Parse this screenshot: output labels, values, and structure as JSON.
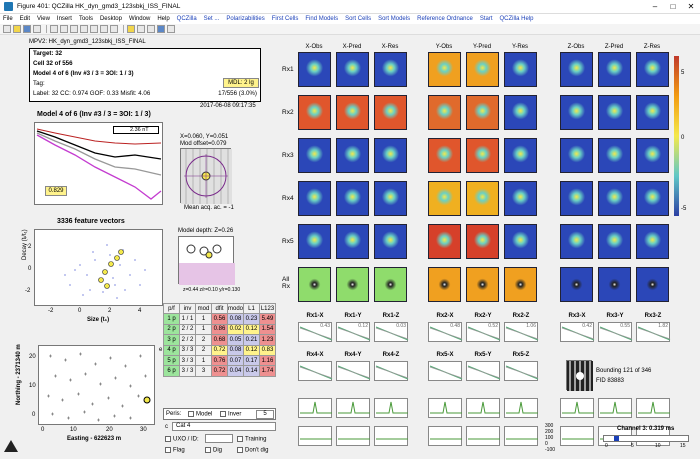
{
  "window": {
    "title": "Figure 401: QCZilla HK_dyn_gmd3_123sbkj_ISS_FINAL"
  },
  "menu": {
    "items": [
      "File",
      "Edit",
      "View",
      "Insert",
      "Tools",
      "Desktop",
      "Window",
      "Help",
      "QCZilla",
      "Set ...",
      "Polarizabilities",
      "First Cells",
      "Find Models",
      "Sort Cells",
      "Sort Models",
      "Reference Ordnance",
      "Start",
      "QCZilla Help"
    ]
  },
  "info": {
    "filename": "MPV2: HK_dyn_gmd3_123sbkj_ISS_FINAL",
    "target": "Target: 32",
    "cell": "Cell 32 of 556",
    "model": "Model 4 of 6 (Inv #3 / 3 = 3OI: 1 / 3)",
    "tag": "Tag:",
    "mdl": "MDL: 2 lg",
    "stats": "Label: 32   CC: 0.974   GOF: 0.33   Misfit: 4.06",
    "progress": "17/556 (3.0%)",
    "date": "2017-06-08 09:17:35"
  },
  "decay": {
    "title": "Model 4 of 6 (Inv #3 / 3 = 3OI: 1 / 3)",
    "legend": "2.36 nT",
    "value": "0.829",
    "mini_header": "X=0.060, Y=0.051",
    "mini_header2": "Mod offset=0.079",
    "mini_footer": "Mean acq. ac. = -1"
  },
  "depth": {
    "title": "Model depth: Z=0.26",
    "footer": "z=0.44   z/r=0.10   y/r=0.130"
  },
  "scatter": {
    "title": "3336 feature vectors",
    "xlabel": "Size (t₁)",
    "ylabel": "Decay (tᵢ/t₁)",
    "xticks": [
      "-2",
      "0",
      "2",
      "4"
    ],
    "yticks": [
      "2",
      "0",
      "-2"
    ]
  },
  "map": {
    "xlabel": "Easting - 622623 m",
    "ylabel": "Northing - 2371340 m",
    "xticks": [
      "0",
      "10",
      "20",
      "30"
    ],
    "yticks": [
      "20",
      "10",
      "0"
    ]
  },
  "table": {
    "headers": [
      "p/f",
      "inv",
      "mod",
      "dfit",
      "modo",
      "L1",
      "L123"
    ],
    "rows": [
      [
        "1 p",
        "1 / 1",
        "1",
        "0.56",
        "0.08",
        "0.23",
        "5.49"
      ],
      [
        "2 p",
        "2 / 2",
        "1",
        "0.86",
        "0.02",
        "0.12",
        "1.54"
      ],
      [
        "3 p",
        "2 / 2",
        "2",
        "0.68",
        "0.05",
        "0.21",
        "1.23"
      ],
      [
        "4 p",
        "3 / 3",
        "2",
        "0.72",
        "0.08",
        "0.12",
        "0.83"
      ],
      [
        "5 p",
        "3 / 3",
        "1",
        "0.76",
        "0.07",
        "0.17",
        "1.16"
      ],
      [
        "6 p",
        "3 / 3",
        "3",
        "0.72",
        "0.04",
        "0.14",
        "1.74"
      ]
    ],
    "side_label": "e"
  },
  "controls": {
    "peris": "Peris:",
    "model": "Model",
    "inver": "Inver",
    "field_value": "5",
    "cat_label": "c",
    "cat_value": "Cat 4",
    "uxo": "UXO / ID:",
    "training": "Training",
    "flag": "Flag",
    "dig": "Dig",
    "dont_dig": "Don't dig"
  },
  "grid": {
    "col_titles": [
      "X-Obs",
      "X-Pred",
      "X-Res",
      "Y-Obs",
      "Y-Pred",
      "Y-Res",
      "Z-Obs",
      "Z-Pred",
      "Z-Res"
    ],
    "row_labels": [
      "Rx1",
      "Rx2",
      "Rx3",
      "Rx4",
      "Rx5",
      "All Rx"
    ],
    "colorbar_ticks": [
      "5",
      "0",
      "-5"
    ]
  },
  "mini": {
    "row1": [
      "Rx1-X",
      "Rx1-Y",
      "Rx1-Z",
      "Rx2-X",
      "Rx2-Y",
      "Rx2-Z",
      "Rx3-X",
      "Rx3-Y",
      "Rx3-Z"
    ],
    "row1_vals": [
      "0.43",
      "0.12",
      "0.03",
      "0.48",
      "0.52",
      "1.06",
      "0.42",
      "0.55",
      "1.82"
    ],
    "row2": [
      "Rx4-X",
      "Rx4-Y",
      "Rx4-Z",
      "Rx5-X",
      "Rx5-Y",
      "Rx5-Z"
    ],
    "yaxis": [
      "300",
      "200",
      "100",
      "0",
      "-100"
    ]
  },
  "bounding": {
    "text1": "Bounding 121 of 346",
    "text2": "FID 83883"
  },
  "channel": {
    "label": "Channel 3:",
    "value": "0.319 ms",
    "ticks": [
      "0",
      "5",
      "10",
      "15"
    ]
  },
  "colors": {
    "accent": "#1a3fb8",
    "highlight_yellow": "#fff38c",
    "highlight_red": "#ee9090",
    "highlight_green": "#9ce49c"
  }
}
